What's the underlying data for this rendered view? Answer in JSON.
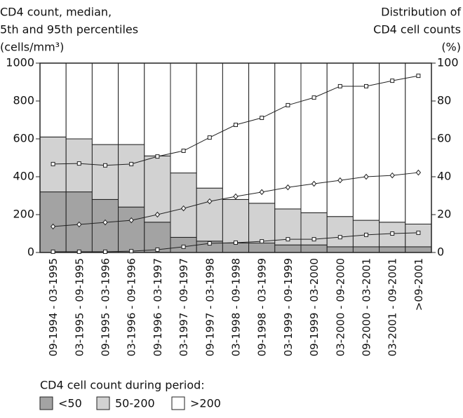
{
  "chart_data": {
    "type": "bar",
    "stacked": true,
    "ylabel": [
      "CD4 count, median,",
      "5th and 95th percentiles",
      "(cells/mm³)"
    ],
    "y2label": [
      "Distribution of",
      "CD4 cell counts",
      "(%)"
    ],
    "legend_title": "CD4 cell count during period:",
    "categories": [
      "09-1994 - 03-1995",
      "03-1995 - 09-1995",
      "09-1995 - 03-1996",
      "03-1996 - 09-1996",
      "09-1996 - 03-1997",
      "03-1997 - 09-1997",
      "09-1997 - 03-1998",
      "03-1998 - 09-1998",
      "09-1998 - 03-1999",
      "03-1999 - 09-1999",
      "09-1999 - 03-2000",
      "03-2000 - 09-2000",
      "09-2000 - 03-2001",
      "03-2001 - 09-2001",
      ">09-2001"
    ],
    "series": [
      {
        "name": "<50",
        "color": "#a3a3a3",
        "axis": "y2",
        "values": [
          32,
          32,
          28,
          24,
          16,
          8,
          6,
          5,
          5,
          4,
          4,
          3,
          3,
          3,
          3
        ]
      },
      {
        "name": "50-200",
        "color": "#d2d2d2",
        "axis": "y2",
        "values": [
          29,
          28,
          29,
          33,
          35,
          34,
          28,
          23,
          21,
          19,
          17,
          16,
          14,
          13,
          12
        ]
      },
      {
        "name": ">200",
        "color": "#ffffff",
        "axis": "y2",
        "values": [
          39,
          40,
          43,
          43,
          49,
          58,
          66,
          72,
          74,
          77,
          79,
          81,
          83,
          84,
          85
        ]
      }
    ],
    "lines": [
      {
        "marker": "square",
        "color": "#222222",
        "values": [
          467,
          470,
          460,
          467,
          507,
          537,
          607,
          674,
          711,
          778,
          818,
          878,
          878,
          907,
          933
        ]
      },
      {
        "marker": "diamond",
        "color": "#222222",
        "values": [
          137,
          148,
          159,
          170,
          200,
          233,
          270,
          296,
          319,
          344,
          363,
          381,
          400,
          407,
          422
        ]
      },
      {
        "marker": "square",
        "color": "#222222",
        "values": [
          4,
          4,
          4,
          7,
          15,
          30,
          48,
          52,
          59,
          70,
          70,
          81,
          93,
          100,
          104
        ]
      }
    ],
    "ylim": [
      0,
      1000
    ],
    "yticks": [
      0,
      200,
      400,
      600,
      800,
      1000
    ],
    "y2lim": [
      0,
      100
    ],
    "y2ticks": [
      0,
      20,
      40,
      60,
      80,
      100
    ]
  }
}
